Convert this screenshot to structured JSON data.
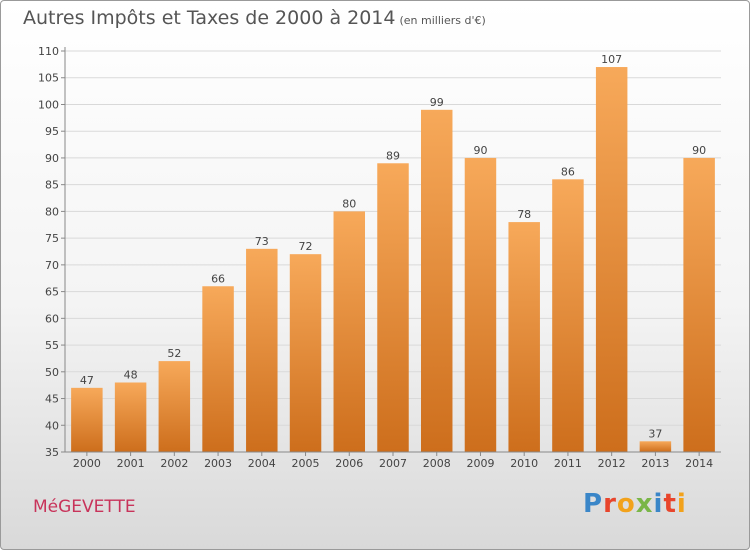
{
  "title": "Autres Impôts et Taxes de 2000 à 2014",
  "subtitle": "(en milliers d'€)",
  "commune": "MéGEVETTE",
  "logo": {
    "text": "Proxiti",
    "letters": [
      {
        "ch": "P",
        "color": "#3a86c8"
      },
      {
        "ch": "r",
        "color": "#e8452c"
      },
      {
        "ch": "o",
        "color": "#f2a21b"
      },
      {
        "ch": "x",
        "color": "#7ab648"
      },
      {
        "ch": "i",
        "color": "#3a86c8"
      },
      {
        "ch": "t",
        "color": "#e8452c"
      },
      {
        "ch": "i",
        "color": "#f2a21b"
      }
    ]
  },
  "colors": {
    "bar_light": "#f7a95a",
    "bar_dark": "#cd6e1c",
    "grid": "#d9d9d9",
    "axis": "#888888",
    "text": "#444444"
  },
  "chart_data": {
    "type": "bar",
    "categories": [
      "2000",
      "2001",
      "2002",
      "2003",
      "2004",
      "2005",
      "2006",
      "2007",
      "2008",
      "2009",
      "2010",
      "2011",
      "2012",
      "2013",
      "2014"
    ],
    "values": [
      47,
      48,
      52,
      66,
      73,
      72,
      80,
      89,
      99,
      90,
      78,
      86,
      107,
      37,
      90
    ],
    "ylim": [
      35,
      110
    ],
    "yticks": [
      35,
      40,
      45,
      50,
      55,
      60,
      65,
      70,
      75,
      80,
      85,
      90,
      95,
      100,
      105,
      110
    ],
    "grid": true,
    "legend": "none"
  }
}
